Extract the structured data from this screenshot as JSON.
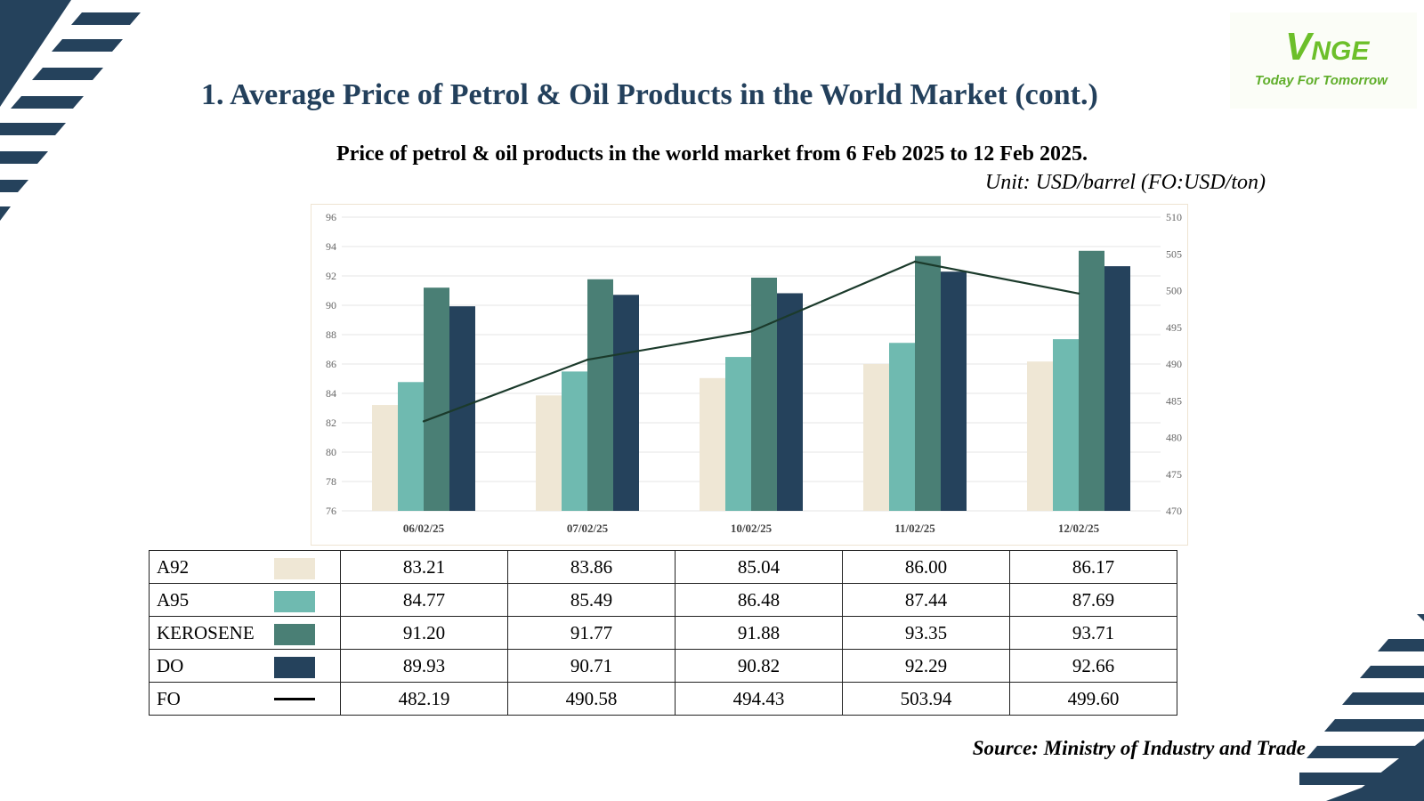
{
  "header": {
    "title": "1. Average Price of Petrol & Oil Products in the World Market (cont.)",
    "subtitle": "Price of petrol & oil products in the world market from 6 Feb 2025 to 12 Feb 2025.",
    "unit": "Unit: USD/barrel (FO:USD/ton)"
  },
  "logo": {
    "v": "V",
    "rest": "NGE",
    "tagline": "Today For Tomorrow"
  },
  "source": "Source: Ministry of Industry and Trade",
  "colors": {
    "A92": "#efe7d5",
    "A95": "#6fbab0",
    "KEROSENE": "#4a7f75",
    "DO": "#25425c",
    "FO": "#1b3a2b",
    "title": "#23405c",
    "deco": "#25425c"
  },
  "chart_data": {
    "type": "bar",
    "categories": [
      "06/02/25",
      "07/02/25",
      "10/02/25",
      "11/02/25",
      "12/02/25"
    ],
    "series": [
      {
        "name": "A92",
        "type": "bar",
        "axis": "left",
        "values": [
          83.21,
          83.86,
          85.04,
          86.0,
          86.17
        ]
      },
      {
        "name": "A95",
        "type": "bar",
        "axis": "left",
        "values": [
          84.77,
          85.49,
          86.48,
          87.44,
          87.69
        ]
      },
      {
        "name": "KEROSENE",
        "type": "bar",
        "axis": "left",
        "values": [
          91.2,
          91.77,
          91.88,
          93.35,
          93.71
        ]
      },
      {
        "name": "DO",
        "type": "bar",
        "axis": "left",
        "values": [
          89.93,
          90.71,
          90.82,
          92.29,
          92.66
        ]
      },
      {
        "name": "FO",
        "type": "line",
        "axis": "right",
        "values": [
          482.19,
          490.58,
          494.43,
          503.94,
          499.6
        ]
      }
    ],
    "ylim": [
      76,
      96
    ],
    "yticks": [
      "76",
      "78",
      "80",
      "82",
      "84",
      "86",
      "88",
      "90",
      "92",
      "94",
      "96"
    ],
    "y2lim": [
      470,
      510
    ],
    "y2ticks": [
      "470",
      "475",
      "480",
      "485",
      "490",
      "495",
      "500",
      "505",
      "510"
    ],
    "grid": true
  },
  "table": {
    "rows": [
      {
        "name": "A92",
        "values": [
          "83.21",
          "83.86",
          "85.04",
          "86.00",
          "86.17"
        ]
      },
      {
        "name": "A95",
        "values": [
          "84.77",
          "85.49",
          "86.48",
          "87.44",
          "87.69"
        ]
      },
      {
        "name": "KEROSENE",
        "values": [
          "91.20",
          "91.77",
          "91.88",
          "93.35",
          "93.71"
        ]
      },
      {
        "name": "DO",
        "values": [
          "89.93",
          "90.71",
          "90.82",
          "92.29",
          "92.66"
        ]
      },
      {
        "name": "FO",
        "values": [
          "482.19",
          "490.58",
          "494.43",
          "503.94",
          "499.60"
        ]
      }
    ]
  }
}
